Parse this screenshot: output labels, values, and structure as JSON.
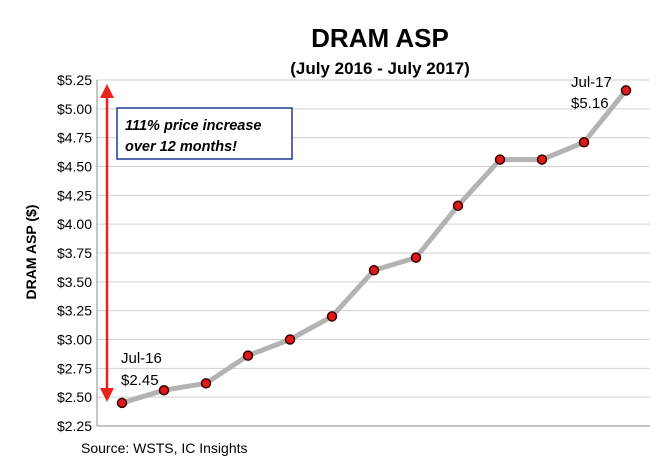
{
  "chart_data": {
    "type": "line",
    "title": "DRAM ASP",
    "subtitle": "(July 2016 - July 2017)",
    "ylabel": "DRAM ASP ($)",
    "xlabel": "",
    "ylim": [
      2.25,
      5.25
    ],
    "yticks": [
      "$2.25",
      "$2.50",
      "$2.75",
      "$3.00",
      "$3.25",
      "$3.50",
      "$3.75",
      "$4.00",
      "$4.25",
      "$4.50",
      "$4.75",
      "$5.00",
      "$5.25"
    ],
    "ytick_values": [
      2.25,
      2.5,
      2.75,
      3.0,
      3.25,
      3.5,
      3.75,
      4.0,
      4.25,
      4.5,
      4.75,
      5.0,
      5.25
    ],
    "grid": true,
    "series": [
      {
        "values": [
          2.45,
          2.56,
          2.62,
          2.86,
          3.0,
          3.2,
          3.6,
          3.71,
          4.16,
          4.56,
          4.56,
          4.71,
          5.16
        ]
      }
    ],
    "annotations": {
      "start_label": "Jul-16",
      "start_value": "$2.45",
      "end_label": "Jul-17",
      "end_value": "$5.16",
      "callout_line1": "111% price increase",
      "callout_line2": "over 12 months!"
    },
    "colors": {
      "line": "#b3b3b3",
      "marker": "#e0191b",
      "marker_edge": "#3a0000",
      "arrow": "#e8231c",
      "callout_border": "#1f3a93"
    }
  },
  "source": "Source:  WSTS, IC Insights"
}
